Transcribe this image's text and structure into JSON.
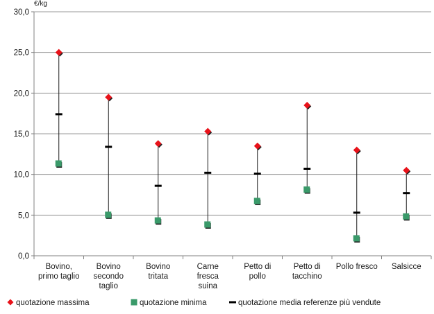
{
  "chart_data": {
    "type": "scatter",
    "top_left_label": "€/kg",
    "categories": [
      [
        "Bovino,",
        "primo taglio"
      ],
      [
        "Bovino",
        "secondo",
        "taglio"
      ],
      [
        "Bovino",
        "tritata"
      ],
      [
        "Carne",
        "fresca",
        "suina"
      ],
      [
        "Petto di",
        "pollo"
      ],
      [
        "Petto di",
        "tacchino"
      ],
      [
        "Pollo fresco"
      ],
      [
        "Salsicce"
      ]
    ],
    "y_ticks": [
      "0,0",
      "5,0",
      "10,0",
      "15,0",
      "20,0",
      "25,0",
      "30,0"
    ],
    "ylim": [
      0,
      30
    ],
    "grid": true,
    "legend_position": "bottom",
    "series": [
      {
        "name": "quotazione massima",
        "marker": "diamond",
        "color": "#e8121a",
        "values": [
          25.0,
          19.5,
          13.8,
          15.3,
          13.5,
          18.5,
          13.0,
          10.5
        ]
      },
      {
        "name": "quotazione minima",
        "marker": "square",
        "color": "#3a9a6a",
        "values": [
          11.3,
          5.0,
          4.3,
          3.8,
          6.7,
          8.1,
          2.1,
          4.8
        ]
      },
      {
        "name": "quotazione media referenze più vendute",
        "marker": "dash",
        "color": "#000000",
        "values": [
          17.4,
          13.4,
          8.6,
          10.2,
          10.1,
          10.7,
          5.3,
          7.7
        ]
      }
    ]
  }
}
